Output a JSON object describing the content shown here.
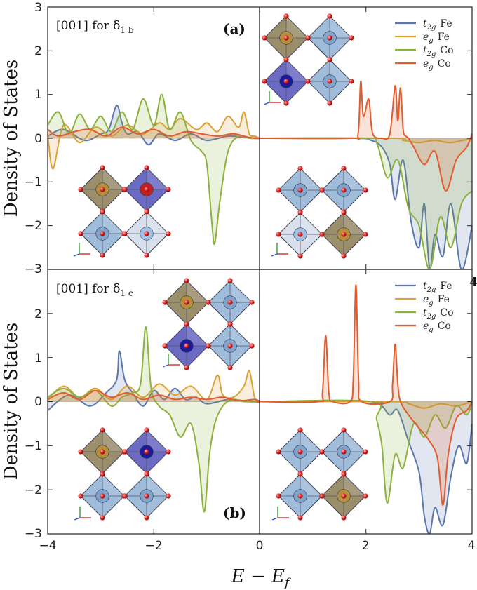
{
  "chart_data": {
    "type": "line",
    "xlabel": "E − E",
    "xlabel_sub": "f",
    "ylabel": "Density of States",
    "xlim": [
      -4,
      4
    ],
    "ylim": [
      -3,
      3
    ],
    "x_ticks": [
      "−4",
      "−2",
      "0",
      "2",
      "4"
    ],
    "y_ticks": [
      "−3",
      "−2",
      "−1",
      "0",
      "1",
      "2",
      "3"
    ],
    "y_ticks_bottom": [
      "−3",
      "−2",
      "−1",
      "0",
      "1",
      "2"
    ],
    "legend": [
      {
        "orbital": "t",
        "sub": "2g",
        "species": "Fe",
        "color": "#5a77ad"
      },
      {
        "orbital": "e",
        "sub": "g",
        "species": "Fe",
        "color": "#daa237"
      },
      {
        "orbital": "t",
        "sub": "2g",
        "species": "Co",
        "color": "#8cb13d"
      },
      {
        "orbital": "e",
        "sub": "g",
        "species": "Co",
        "color": "#e15c2e"
      }
    ],
    "panels": [
      {
        "id": "a",
        "title": "[001] for δ",
        "title_sub": "1 b",
        "label": "(a)",
        "stray_text": "",
        "series": [
          {
            "name": "t2g Fe",
            "color": "#5a77ad",
            "x": [
              -4,
              -3.7,
              -3.3,
              -3,
              -2.85,
              -2.7,
              -2.6,
              -2.5,
              -2.3,
              -2.1,
              -1.9,
              -1.6,
              -1.3,
              -1.0,
              -0.6,
              -0.3,
              0.0,
              0.02,
              1.8,
              2.1,
              2.3,
              2.45,
              2.55,
              2.7,
              2.85,
              3.0,
              3.1,
              3.2,
              3.3,
              3.45,
              3.6,
              3.8,
              4.0
            ],
            "y": [
              0.05,
              0.2,
              -0.05,
              0.1,
              0.2,
              0.75,
              0.35,
              0.1,
              0.15,
              -0.15,
              0.1,
              -0.05,
              0.1,
              -0.05,
              0.05,
              0.02,
              0,
              0,
              0,
              -0.05,
              -0.2,
              -0.6,
              -1.4,
              -0.5,
              -1.9,
              -2.5,
              -1.5,
              -3.0,
              -2.2,
              -2.7,
              -1.5,
              -3.0,
              -2.0
            ]
          },
          {
            "name": "eg Fe",
            "color": "#daa237",
            "x": [
              -4,
              -3.9,
              -3.7,
              -3.4,
              -3.1,
              -2.8,
              -2.5,
              -2.2,
              -1.9,
              -1.7,
              -1.5,
              -1.2,
              -1.0,
              -0.8,
              -0.6,
              -0.4,
              -0.3,
              -0.2,
              -0.1,
              0.0,
              0.02,
              2.5,
              2.7,
              3.0,
              3.3,
              3.6,
              4.0
            ],
            "y": [
              0.1,
              -0.7,
              0.3,
              -0.1,
              0.25,
              0.05,
              0.3,
              0.1,
              0.35,
              0.2,
              0.45,
              0.2,
              0.35,
              0.15,
              0.5,
              0.25,
              0.6,
              0.1,
              0.05,
              0,
              0,
              0,
              -0.05,
              -0.1,
              -0.05,
              -0.1,
              0
            ]
          },
          {
            "name": "t2g Co",
            "color": "#8cb13d",
            "x": [
              -4,
              -3.8,
              -3.6,
              -3.4,
              -3.2,
              -3.0,
              -2.8,
              -2.6,
              -2.4,
              -2.2,
              -2.0,
              -1.85,
              -1.7,
              -1.5,
              -1.3,
              -1.1,
              -1.0,
              -0.9,
              -0.85,
              -0.75,
              -0.6,
              -0.4,
              -0.2,
              0.0,
              0.02,
              2.0,
              2.2,
              2.4,
              2.6,
              2.8,
              3.0,
              3.2,
              3.4,
              3.6,
              3.8,
              4.0
            ],
            "y": [
              0.3,
              0.6,
              0.1,
              0.55,
              0.2,
              0.5,
              0.15,
              0.6,
              0.2,
              0.9,
              0.3,
              1.0,
              0.2,
              0.6,
              -0.05,
              -0.3,
              -0.6,
              -2.0,
              -2.4,
              -1.4,
              -0.3,
              0.05,
              0,
              0,
              0,
              0,
              -0.1,
              -0.9,
              -0.5,
              -1.6,
              -2.0,
              -3.0,
              -1.8,
              -2.5,
              -1.5,
              -1.2
            ]
          },
          {
            "name": "eg Co",
            "color": "#e15c2e",
            "x": [
              -4,
              -3.8,
              -3.5,
              -3.2,
              -2.9,
              -2.6,
              -2.3,
              -2.0,
              -1.7,
              -1.4,
              -1.1,
              -0.8,
              -0.5,
              -0.2,
              0.0,
              0.02,
              1.7,
              1.85,
              1.9,
              1.95,
              2.05,
              2.1,
              2.15,
              2.3,
              2.45,
              2.55,
              2.6,
              2.65,
              2.7,
              2.75,
              2.8,
              2.9,
              3.1,
              3.3,
              3.5,
              3.7,
              3.9,
              4.0
            ],
            "y": [
              0.2,
              0.05,
              0.15,
              0.2,
              0.05,
              0.25,
              0.1,
              0.2,
              0.05,
              0.15,
              0.1,
              0.05,
              0.1,
              0.02,
              0,
              0,
              0,
              0.1,
              1.3,
              0.5,
              0.9,
              0.3,
              0.05,
              0,
              0.1,
              1.2,
              0.4,
              1.15,
              0.2,
              0.05,
              0,
              -0.2,
              -0.6,
              -0.3,
              -1.2,
              -0.5,
              -0.2,
              0.1
            ]
          }
        ]
      },
      {
        "id": "b",
        "title": "[001] for δ",
        "title_sub": "1 c",
        "label": "(b)",
        "stray_text": "4",
        "series": [
          {
            "name": "t2g Fe",
            "color": "#5a77ad",
            "x": [
              -4,
              -3.6,
              -3.2,
              -2.9,
              -2.7,
              -2.65,
              -2.55,
              -2.4,
              -2.2,
              -2.0,
              -1.8,
              -1.6,
              -1.4,
              -1.2,
              -1.0,
              -0.6,
              -0.3,
              0.0,
              0.02,
              2.1,
              2.3,
              2.45,
              2.6,
              2.8,
              3.0,
              3.1,
              3.2,
              3.3,
              3.45,
              3.6,
              3.75,
              3.9,
              4.0
            ],
            "y": [
              -0.2,
              0.15,
              -0.1,
              0.2,
              0.5,
              1.15,
              0.5,
              0.2,
              -0.1,
              0.25,
              0.05,
              0.3,
              0.05,
              0.1,
              -0.05,
              0.05,
              0.02,
              0,
              0,
              0,
              -0.1,
              -0.3,
              -0.2,
              -0.9,
              -1.6,
              -2.6,
              -3.0,
              -2.4,
              -2.8,
              -1.7,
              -1.0,
              -1.4,
              -0.5
            ]
          },
          {
            "name": "eg Fe",
            "color": "#daa237",
            "x": [
              -4,
              -3.7,
              -3.4,
              -3.1,
              -2.8,
              -2.5,
              -2.2,
              -1.9,
              -1.6,
              -1.3,
              -1.0,
              -0.8,
              -0.7,
              -0.5,
              -0.3,
              -0.2,
              -0.1,
              0.0,
              0.02,
              2.5,
              2.8,
              3.1,
              3.4,
              3.7,
              4.0
            ],
            "y": [
              0.05,
              0.35,
              0.1,
              0.3,
              0.05,
              0.35,
              0.1,
              0.4,
              0.15,
              0.35,
              0.05,
              0.6,
              0.15,
              0.1,
              0.35,
              0.7,
              0.1,
              0,
              0,
              0,
              -0.05,
              -0.15,
              -0.05,
              -0.1,
              0
            ]
          },
          {
            "name": "t2g Co",
            "color": "#8cb13d",
            "x": [
              -4,
              -3.7,
              -3.4,
              -3.1,
              -2.8,
              -2.6,
              -2.4,
              -2.25,
              -2.15,
              -2.05,
              -1.9,
              -1.7,
              -1.5,
              -1.3,
              -1.15,
              -1.05,
              -0.95,
              -0.85,
              -0.7,
              -0.5,
              -0.3,
              0.0,
              0.02,
              2.1,
              2.2,
              2.3,
              2.4,
              2.55,
              2.7,
              2.9,
              3.1,
              3.3,
              3.5,
              3.7,
              3.9,
              4.0
            ],
            "y": [
              0.1,
              0.3,
              0.1,
              0.25,
              -0.1,
              0.1,
              0.2,
              0.4,
              1.7,
              0.3,
              -0.1,
              -0.3,
              -0.8,
              -0.5,
              -1.4,
              -2.5,
              -1.2,
              -0.5,
              -0.1,
              0.05,
              0,
              0,
              0,
              0,
              -0.4,
              -1.0,
              -2.3,
              -1.2,
              -1.5,
              -0.5,
              -0.8,
              -0.3,
              -0.6,
              -0.1,
              -0.3,
              0
            ]
          },
          {
            "name": "eg Co",
            "color": "#e15c2e",
            "x": [
              -4,
              -3.7,
              -3.4,
              -3.1,
              -2.8,
              -2.5,
              -2.2,
              -1.9,
              -1.6,
              -1.3,
              -1.0,
              -0.7,
              -0.4,
              -0.1,
              0.0,
              0.02,
              1.1,
              1.18,
              1.24,
              1.3,
              1.38,
              1.7,
              1.76,
              1.81,
              1.86,
              1.92,
              2.45,
              2.5,
              2.55,
              2.6,
              2.65,
              2.8,
              3.0,
              3.2,
              3.35,
              3.45,
              3.55,
              3.7,
              3.9,
              4.0
            ],
            "y": [
              0.05,
              0.2,
              0.05,
              0.25,
              0.1,
              0.2,
              0.05,
              0.15,
              0.05,
              0.1,
              0.05,
              0.1,
              0.02,
              0.05,
              0,
              0,
              0,
              0.2,
              1.5,
              0.2,
              0,
              0,
              0.5,
              2.65,
              0.5,
              0,
              0,
              0.4,
              1.3,
              0.4,
              0,
              -0.3,
              -0.6,
              -0.9,
              -1.3,
              -2.35,
              -1.2,
              -0.4,
              -0.2,
              0
            ]
          }
        ]
      }
    ]
  }
}
